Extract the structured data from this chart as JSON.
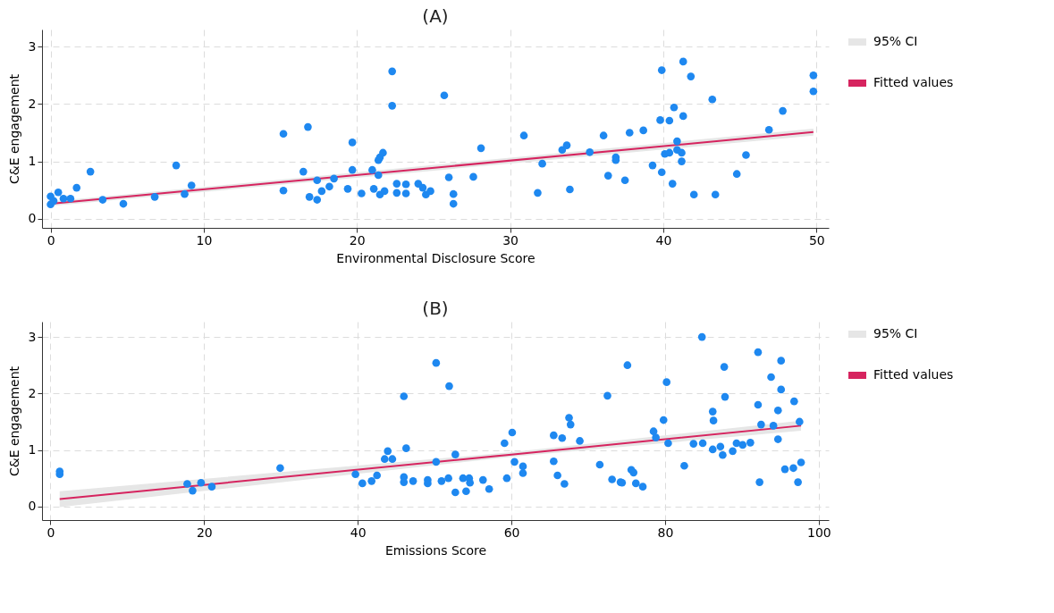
{
  "chart_data": [
    {
      "type": "scatter",
      "title": "(A)",
      "xlabel": "Environmental Disclosure Score",
      "ylabel": "C&E engagement",
      "xlim": [
        -0.56,
        50.8
      ],
      "ylim": [
        -0.16,
        3.3
      ],
      "xticks": [
        0,
        10,
        20,
        30,
        40,
        50
      ],
      "yticks": [
        0,
        1,
        2,
        3
      ],
      "grid": true,
      "legend": "right",
      "annotations": [
        "95% CI"
      ],
      "series": [
        {
          "type": "scatter",
          "marker": "circle",
          "color": "#1e88f0",
          "x": [
            0,
            0,
            0.2,
            0.5,
            0.84,
            1.3,
            1.7,
            2.6,
            3.4,
            4.75,
            6.8,
            8.2,
            8.75,
            9.2,
            15.2,
            15.2,
            16.5,
            16.8,
            17.4,
            16.9,
            17.4,
            17.7,
            18.2,
            18.5,
            19.4,
            19.7,
            19.7,
            20.3,
            21.0,
            21.1,
            21.4,
            21.5,
            21.7,
            21.4,
            21.5,
            21.8,
            22.3,
            22.3,
            22.6,
            22.6,
            23.2,
            23.2,
            24.0,
            24.3,
            24.5,
            24.8,
            25.7,
            26.0,
            26.3,
            26.3,
            27.6,
            28.1,
            30.9,
            31.8,
            32.1,
            33.4,
            33.7,
            33.9,
            35.2,
            36.1,
            36.4,
            36.9,
            36.9,
            37.5,
            37.8,
            38.7,
            39.3,
            39.9,
            39.8,
            39.9,
            40.1,
            40.4,
            40.4,
            40.7,
            40.6,
            40.9,
            40.9,
            41.2,
            41.2,
            41.3,
            41.3,
            41.8,
            42.0,
            43.2,
            43.4,
            44.8,
            45.4,
            46.9,
            47.8,
            49.8,
            49.8
          ],
          "values": [
            0.25,
            0.39,
            0.31,
            0.46,
            0.35,
            0.35,
            0.54,
            0.82,
            0.33,
            0.26,
            0.38,
            0.93,
            0.43,
            0.58,
            1.48,
            0.49,
            0.82,
            1.6,
            0.67,
            0.38,
            0.33,
            0.48,
            0.56,
            0.7,
            0.52,
            1.33,
            0.85,
            0.44,
            0.85,
            0.52,
            1.02,
            1.07,
            1.15,
            0.76,
            0.42,
            0.48,
            2.57,
            1.97,
            0.61,
            0.45,
            0.6,
            0.44,
            0.61,
            0.54,
            0.42,
            0.48,
            2.15,
            0.72,
            0.43,
            0.26,
            0.73,
            1.23,
            1.45,
            0.45,
            0.96,
            1.2,
            1.28,
            0.51,
            1.16,
            1.45,
            0.75,
            1.07,
            1.02,
            0.67,
            1.5,
            1.54,
            0.93,
            0.81,
            1.72,
            2.59,
            1.13,
            1.15,
            1.71,
            1.94,
            0.61,
            1.35,
            1.2,
            1.15,
            1.0,
            1.79,
            2.74,
            2.48,
            0.42,
            2.08,
            0.42,
            0.78,
            1.11,
            1.55,
            1.88,
            2.5,
            2.22
          ]
        },
        {
          "type": "line",
          "name": "Fitted values",
          "color": "#d6245f",
          "x": [
            0,
            49.8
          ],
          "values": [
            0.26,
            1.51
          ],
          "lower": [
            0.22,
            1.45
          ],
          "upper": [
            0.3,
            1.57
          ]
        }
      ]
    },
    {
      "type": "scatter",
      "title": "(B)",
      "xlabel": "Emissions Score",
      "ylabel": "C&E engagement",
      "xlim": [
        -1.1,
        101.3
      ],
      "ylim": [
        -0.24,
        3.27
      ],
      "xticks": [
        0,
        20,
        40,
        60,
        80,
        100
      ],
      "yticks": [
        0,
        1,
        2,
        3
      ],
      "grid": true,
      "legend": "right",
      "annotations": [
        "95% CI"
      ],
      "series": [
        {
          "type": "scatter",
          "marker": "circle",
          "color": "#1e88f0",
          "x": [
            1.2,
            1.2,
            17.8,
            18.5,
            19.6,
            21.0,
            29.9,
            39.7,
            40.6,
            41.8,
            42.5,
            43.5,
            43.9,
            44.5,
            46.0,
            46.3,
            46.0,
            46.0,
            47.2,
            49.1,
            49.1,
            50.2,
            50.2,
            50.9,
            51.8,
            51.9,
            52.7,
            52.7,
            53.7,
            54.1,
            54.5,
            54.6,
            56.3,
            57.1,
            59.1,
            60.1,
            59.4,
            60.4,
            61.5,
            61.5,
            65.5,
            65.5,
            66.0,
            66.6,
            66.9,
            67.5,
            67.7,
            68.9,
            71.5,
            72.5,
            73.1,
            74.2,
            74.4,
            75.1,
            75.6,
            75.9,
            76.2,
            77.1,
            78.5,
            78.8,
            79.8,
            80.2,
            80.4,
            82.5,
            83.7,
            84.8,
            84.9,
            86.2,
            86.3,
            86.2,
            87.2,
            87.5,
            87.7,
            87.8,
            88.8,
            89.3,
            90.1,
            91.1,
            92.1,
            92.1,
            92.3,
            92.5,
            93.8,
            94.1,
            94.7,
            94.7,
            95.1,
            95.1,
            95.6,
            96.7,
            96.8,
            97.3,
            97.7,
            97.5
          ],
          "values": [
            0.57,
            0.62,
            0.4,
            0.28,
            0.42,
            0.35,
            0.68,
            0.57,
            0.41,
            0.45,
            0.55,
            0.84,
            0.98,
            0.84,
            1.95,
            1.03,
            0.52,
            0.43,
            0.45,
            0.47,
            0.41,
            2.54,
            0.79,
            0.45,
            0.5,
            2.13,
            0.92,
            0.25,
            0.5,
            0.27,
            0.5,
            0.42,
            0.47,
            0.31,
            1.12,
            1.31,
            0.5,
            0.79,
            0.71,
            0.59,
            1.26,
            0.8,
            0.55,
            1.21,
            0.4,
            1.57,
            1.45,
            1.16,
            0.74,
            1.96,
            0.48,
            0.43,
            0.42,
            2.5,
            0.65,
            0.6,
            0.41,
            0.35,
            1.33,
            1.22,
            1.53,
            2.2,
            1.12,
            0.72,
            1.11,
            3.0,
            1.12,
            1.68,
            1.52,
            1.01,
            1.06,
            0.91,
            2.47,
            1.94,
            0.98,
            1.12,
            1.09,
            1.13,
            2.73,
            1.8,
            0.43,
            1.45,
            2.29,
            1.43,
            1.7,
            1.19,
            2.58,
            2.07,
            0.66,
            0.68,
            1.86,
            0.43,
            0.78,
            1.5
          ]
        },
        {
          "type": "line",
          "name": "Fitted values",
          "color": "#d6245f",
          "x": [
            1.2,
            60,
            97.7
          ],
          "values": [
            0.13,
            0.92,
            1.43
          ],
          "lower": [
            -0.01,
            0.88,
            1.34
          ],
          "upper": [
            0.27,
            0.96,
            1.52
          ]
        }
      ]
    }
  ]
}
